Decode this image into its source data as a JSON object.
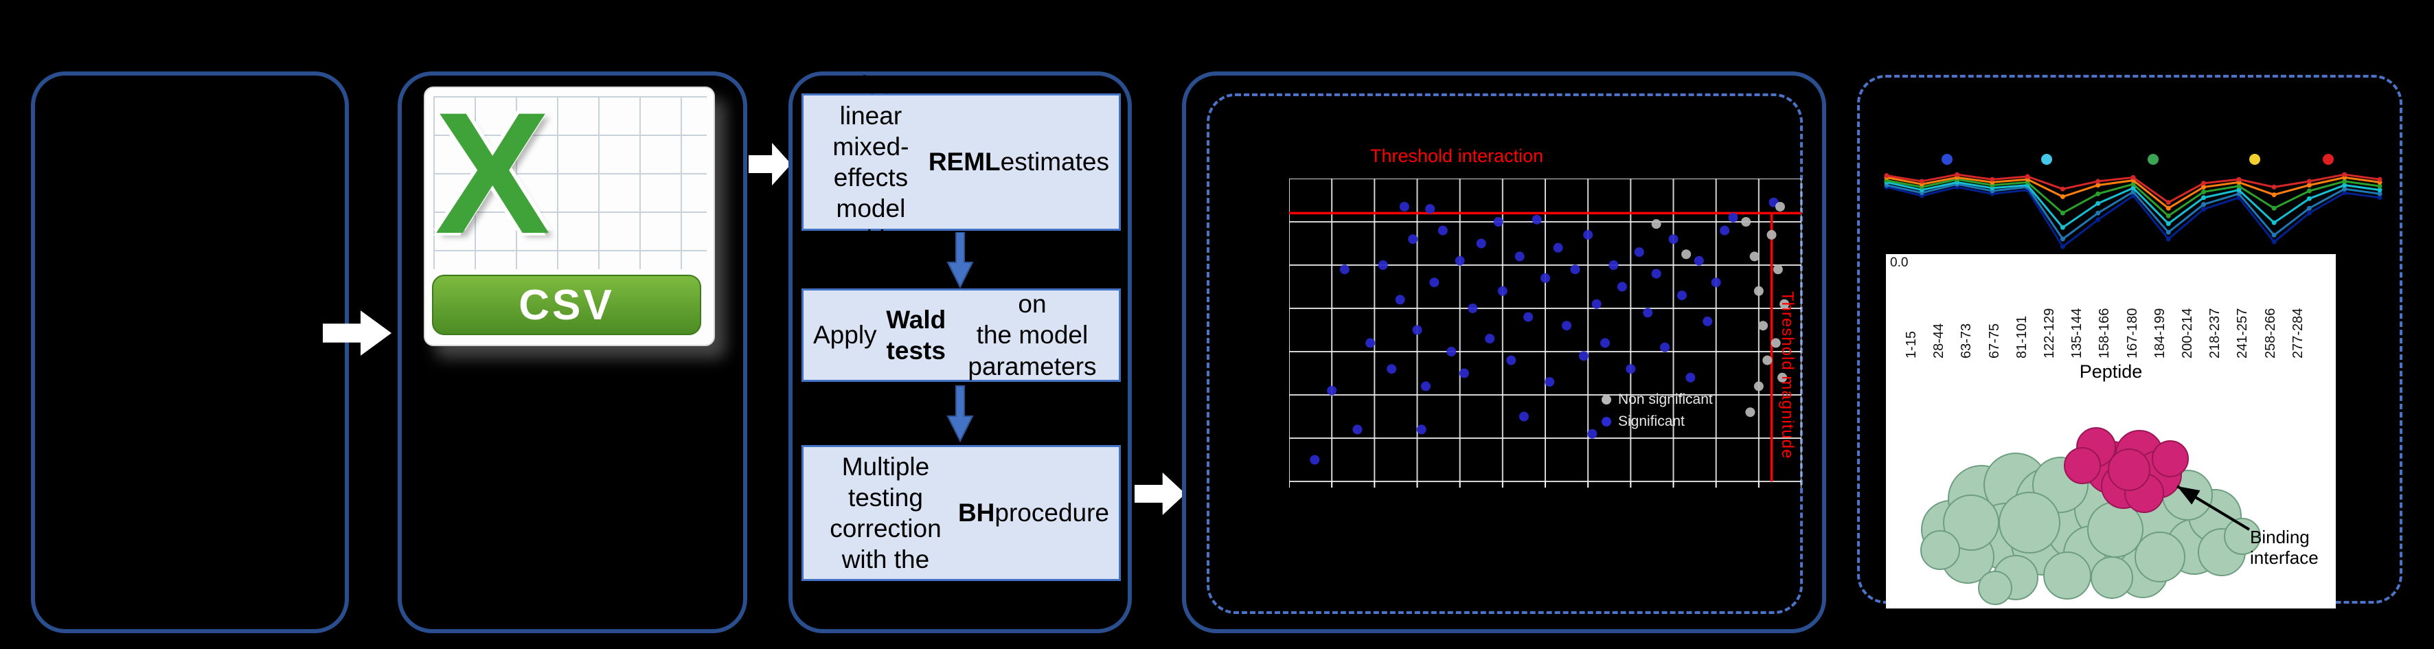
{
  "csv": {
    "logo_letter": "X",
    "label": "CSV"
  },
  "steps": [
    {
      "segments": [
        {
          "t": "Fit a linear mixed-\neffects model with\n",
          "b": 0
        },
        {
          "t": "REML",
          "b": 1
        },
        {
          "t": " estimates",
          "b": 0
        }
      ]
    },
    {
      "segments": [
        {
          "t": "Apply ",
          "b": 0
        },
        {
          "t": "Wald tests",
          "b": 1
        },
        {
          "t": " on\nthe model parameters",
          "b": 0
        }
      ]
    },
    {
      "segments": [
        {
          "t": "Multiple testing\ncorrection\nwith the ",
          "b": 0
        },
        {
          "t": "BH",
          "b": 1
        },
        {
          "t": " procedure",
          "b": 0
        }
      ]
    }
  ],
  "chart_data": [
    {
      "type": "scatter",
      "xlim": [
        0,
        12
      ],
      "ylim": [
        0,
        7
      ],
      "grid": {
        "cols": 12,
        "rows": 7,
        "on": true
      },
      "thresholds": {
        "horizontal_y": 6.2,
        "vertical_x": 11.3,
        "color": "#ff0000",
        "horizontal_label": "Threshold interaction",
        "vertical_label": "Threshold magnitude"
      },
      "series": [
        {
          "name": "Significant",
          "color": "#2a2ad0",
          "points": [
            [
              0.6,
              0.5
            ],
            [
              1.0,
              2.1
            ],
            [
              1.3,
              4.9
            ],
            [
              1.6,
              1.2
            ],
            [
              1.9,
              3.2
            ],
            [
              2.2,
              5.0
            ],
            [
              2.4,
              2.6
            ],
            [
              2.6,
              4.2
            ],
            [
              2.7,
              6.35
            ],
            [
              2.9,
              5.6
            ],
            [
              3.0,
              3.5
            ],
            [
              3.1,
              1.2
            ],
            [
              3.2,
              2.2
            ],
            [
              3.3,
              6.3
            ],
            [
              3.4,
              4.6
            ],
            [
              3.6,
              5.8
            ],
            [
              3.8,
              3.0
            ],
            [
              4.0,
              5.1
            ],
            [
              4.1,
              2.5
            ],
            [
              4.3,
              4.0
            ],
            [
              4.5,
              5.5
            ],
            [
              4.7,
              3.3
            ],
            [
              4.9,
              6.0
            ],
            [
              5.0,
              4.4
            ],
            [
              5.2,
              2.8
            ],
            [
              5.4,
              5.2
            ],
            [
              5.5,
              1.5
            ],
            [
              5.6,
              3.8
            ],
            [
              5.8,
              6.05
            ],
            [
              6.0,
              4.7
            ],
            [
              6.1,
              2.3
            ],
            [
              6.3,
              5.4
            ],
            [
              6.5,
              3.6
            ],
            [
              6.7,
              4.9
            ],
            [
              6.9,
              2.9
            ],
            [
              7.0,
              5.7
            ],
            [
              7.1,
              1.1
            ],
            [
              7.2,
              4.1
            ],
            [
              7.4,
              3.2
            ],
            [
              7.6,
              5.0
            ],
            [
              7.8,
              4.5
            ],
            [
              8.0,
              2.6
            ],
            [
              8.2,
              5.3
            ],
            [
              8.4,
              3.9
            ],
            [
              8.6,
              4.8
            ],
            [
              8.8,
              3.1
            ],
            [
              9.0,
              5.6
            ],
            [
              9.2,
              4.3
            ],
            [
              9.4,
              2.4
            ],
            [
              9.6,
              5.1
            ],
            [
              9.8,
              3.7
            ],
            [
              10.0,
              4.6
            ],
            [
              10.2,
              5.8
            ],
            [
              10.4,
              6.1
            ],
            [
              11.35,
              6.45
            ]
          ]
        },
        {
          "name": "Non significant",
          "color": "#b8b8b8",
          "points": [
            [
              8.6,
              5.95
            ],
            [
              9.3,
              5.25
            ],
            [
              10.7,
              6.0
            ],
            [
              10.9,
              5.2
            ],
            [
              11.0,
              4.4
            ],
            [
              11.1,
              3.6
            ],
            [
              11.2,
              2.8
            ],
            [
              11.0,
              2.2
            ],
            [
              11.3,
              5.7
            ],
            [
              11.45,
              4.9
            ],
            [
              11.5,
              6.35
            ],
            [
              11.6,
              4.1
            ],
            [
              11.4,
              3.2
            ],
            [
              10.8,
              1.6
            ],
            [
              11.55,
              2.4
            ]
          ]
        }
      ],
      "legend": [
        {
          "label": "Non significant",
          "color": "#b8b8b8"
        },
        {
          "label": "Significant",
          "color": "#2a2ad0"
        }
      ]
    },
    {
      "type": "line",
      "xlabel": "Peptide",
      "ytick": "0.0",
      "ylim": [
        0,
        1
      ],
      "categories": [
        "1-15",
        "28-44",
        "63-73",
        "67-75",
        "81-101",
        "122-129",
        "135-144",
        "158-166",
        "167-180",
        "184-199",
        "200-214",
        "218-237",
        "241-257",
        "258-266",
        "277-284"
      ],
      "series": [
        {
          "color": "#00218f",
          "values": [
            0.74,
            0.65,
            0.74,
            0.67,
            0.71,
            0.12,
            0.4,
            0.65,
            0.2,
            0.51,
            0.63,
            0.17,
            0.47,
            0.68,
            0.63
          ]
        },
        {
          "color": "#1f77b4",
          "values": [
            0.76,
            0.68,
            0.77,
            0.7,
            0.74,
            0.2,
            0.47,
            0.69,
            0.27,
            0.56,
            0.67,
            0.24,
            0.52,
            0.72,
            0.67
          ]
        },
        {
          "color": "#17becf",
          "values": [
            0.79,
            0.71,
            0.79,
            0.73,
            0.76,
            0.32,
            0.57,
            0.73,
            0.36,
            0.63,
            0.71,
            0.37,
            0.62,
            0.76,
            0.71
          ]
        },
        {
          "color": "#2ca02c",
          "values": [
            0.81,
            0.74,
            0.82,
            0.76,
            0.79,
            0.47,
            0.67,
            0.77,
            0.44,
            0.69,
            0.75,
            0.52,
            0.7,
            0.8,
            0.75
          ]
        },
        {
          "color": "#ff7f0e",
          "values": [
            0.84,
            0.77,
            0.84,
            0.79,
            0.82,
            0.64,
            0.76,
            0.81,
            0.52,
            0.74,
            0.79,
            0.66,
            0.76,
            0.84,
            0.79
          ]
        },
        {
          "color": "#d62728",
          "values": [
            0.86,
            0.8,
            0.87,
            0.82,
            0.85,
            0.72,
            0.8,
            0.84,
            0.58,
            0.78,
            0.82,
            0.74,
            0.8,
            0.87,
            0.82
          ]
        }
      ],
      "timepoint_dots": [
        "#2a4bd7",
        "#45c8e8",
        "#3aa655",
        "#f2d12e",
        "#e02020"
      ]
    }
  ],
  "structure": {
    "annotation": "Binding interface"
  }
}
